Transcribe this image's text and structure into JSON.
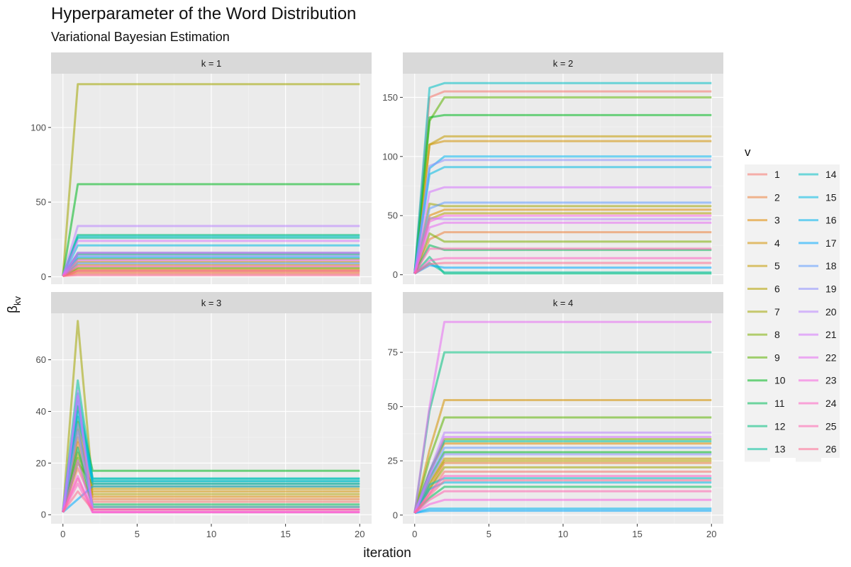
{
  "title": "Hyperparameter of the Word Distribution",
  "subtitle": "Variational Bayesian Estimation",
  "xlabel": "iteration",
  "ylabel_main": "β",
  "ylabel_sub": "kv",
  "legend_title": "v",
  "legend_position": "right",
  "chart_data": {
    "type": "line",
    "facet_prefix": "k = ",
    "x_ticks": [
      0,
      5,
      10,
      15,
      20
    ],
    "xlim": [
      -0.8,
      20.8
    ],
    "grid": true,
    "series_names": [
      "1",
      "2",
      "3",
      "4",
      "5",
      "6",
      "7",
      "8",
      "9",
      "10",
      "11",
      "12",
      "13",
      "14",
      "15",
      "16",
      "17",
      "18",
      "19",
      "20",
      "21",
      "22",
      "23",
      "24",
      "25",
      "26"
    ],
    "series_colors": [
      "#F8766D",
      "#EC823C",
      "#E08B00",
      "#D39200",
      "#C49A00",
      "#B5A300",
      "#A3A500",
      "#7CAE00",
      "#5BB300",
      "#00B81F",
      "#00BC59",
      "#00BF7D",
      "#00C19A",
      "#00BFC4",
      "#00B9E3",
      "#00B4EF",
      "#00A9FF",
      "#619CFF",
      "#8F91FF",
      "#B983FF",
      "#D575FE",
      "#E76BF3",
      "#F763E0",
      "#FF61C3",
      "#FF65AE",
      "#FF6C91"
    ],
    "facets": [
      {
        "k": "1",
        "ylim": [
          -5,
          136
        ],
        "y_ticks": [
          0,
          50,
          100
        ],
        "series": [
          {
            "name": "1",
            "values": [
              0.5,
              2,
              2
            ]
          },
          {
            "name": "2",
            "values": [
              0.5,
              3,
              3
            ]
          },
          {
            "name": "3",
            "values": [
              0.5,
              4,
              4
            ]
          },
          {
            "name": "4",
            "values": [
              0.5,
              5,
              5
            ]
          },
          {
            "name": "5",
            "values": [
              0.5,
              8,
              8
            ]
          },
          {
            "name": "6",
            "values": [
              0.5,
              10,
              10
            ]
          },
          {
            "name": "7",
            "values": [
              0.5,
              129,
              129
            ]
          },
          {
            "name": "8",
            "values": [
              0.5,
              12,
              12
            ]
          },
          {
            "name": "9",
            "values": [
              0.5,
              6,
              6
            ]
          },
          {
            "name": "10",
            "values": [
              0.5,
              62,
              62
            ]
          },
          {
            "name": "11",
            "values": [
              0.5,
              15,
              15
            ]
          },
          {
            "name": "12",
            "values": [
              0.5,
              28,
              28
            ]
          },
          {
            "name": "13",
            "values": [
              0.5,
              26,
              26
            ]
          },
          {
            "name": "14",
            "values": [
              0.5,
              27,
              27
            ]
          },
          {
            "name": "15",
            "values": [
              0.5,
              21,
              21
            ]
          },
          {
            "name": "16",
            "values": [
              0.5,
              13,
              13
            ]
          },
          {
            "name": "17",
            "values": [
              0.5,
              16,
              16
            ]
          },
          {
            "name": "18",
            "values": [
              0.5,
              9,
              9
            ]
          },
          {
            "name": "19",
            "values": [
              0.5,
              14,
              14
            ]
          },
          {
            "name": "20",
            "values": [
              0.5,
              34,
              34
            ]
          },
          {
            "name": "21",
            "values": [
              0.5,
              24,
              24
            ]
          },
          {
            "name": "22",
            "values": [
              0.5,
              11,
              11
            ]
          },
          {
            "name": "23",
            "values": [
              0.5,
              16,
              16
            ]
          },
          {
            "name": "24",
            "values": [
              0.5,
              7,
              7
            ]
          },
          {
            "name": "25",
            "values": [
              0.5,
              4,
              4
            ]
          },
          {
            "name": "26",
            "values": [
              0.5,
              1,
              1
            ]
          }
        ]
      },
      {
        "k": "2",
        "ylim": [
          -8,
          170
        ],
        "y_ticks": [
          0,
          50,
          100,
          150
        ],
        "series": [
          {
            "name": "1",
            "values": [
              1,
              150,
              155,
              155
            ]
          },
          {
            "name": "2",
            "values": [
              1,
              30,
              36,
              36
            ]
          },
          {
            "name": "3",
            "values": [
              1,
              50,
              55,
              55
            ]
          },
          {
            "name": "4",
            "values": [
              1,
              110,
              113,
              113
            ]
          },
          {
            "name": "5",
            "values": [
              1,
              110,
              117,
              117
            ]
          },
          {
            "name": "6",
            "values": [
              1,
              47,
              52,
              52
            ]
          },
          {
            "name": "7",
            "values": [
              1,
              60,
              58,
              58
            ]
          },
          {
            "name": "8",
            "values": [
              1,
              35,
              28,
              28
            ]
          },
          {
            "name": "9",
            "values": [
              1,
              130,
              150,
              150
            ]
          },
          {
            "name": "10",
            "values": [
              1,
              133,
              135,
              135
            ]
          },
          {
            "name": "11",
            "values": [
              1,
              25,
              21,
              21
            ]
          },
          {
            "name": "12",
            "values": [
              1,
              15,
              1,
              1
            ]
          },
          {
            "name": "13",
            "values": [
              1,
              10,
              2,
              2
            ]
          },
          {
            "name": "14",
            "values": [
              1,
              158,
              162,
              162
            ]
          },
          {
            "name": "15",
            "values": [
              1,
              85,
              91,
              91
            ]
          },
          {
            "name": "16",
            "values": [
              1,
              90,
              100,
              100
            ]
          },
          {
            "name": "17",
            "values": [
              1,
              8,
              6,
              6
            ]
          },
          {
            "name": "18",
            "values": [
              1,
              56,
              61,
              61
            ]
          },
          {
            "name": "19",
            "values": [
              1,
              92,
              97,
              97
            ]
          },
          {
            "name": "20",
            "values": [
              1,
              48,
              47,
              47
            ]
          },
          {
            "name": "21",
            "values": [
              1,
              70,
              74,
              74
            ]
          },
          {
            "name": "22",
            "values": [
              1,
              40,
              44,
              44
            ]
          },
          {
            "name": "23",
            "values": [
              1,
              45,
              50,
              50
            ]
          },
          {
            "name": "24",
            "values": [
              1,
              12,
              14,
              14
            ]
          },
          {
            "name": "25",
            "values": [
              1,
              22,
              22,
              22
            ]
          },
          {
            "name": "26",
            "values": [
              1,
              9,
              10,
              10
            ]
          }
        ]
      },
      {
        "k": "3",
        "ylim": [
          -3.5,
          78
        ],
        "y_ticks": [
          0,
          20,
          40,
          60
        ],
        "series": [
          {
            "name": "1",
            "values": [
              1,
              18,
              5,
              5
            ]
          },
          {
            "name": "2",
            "values": [
              1,
              28,
              6,
              6
            ]
          },
          {
            "name": "3",
            "values": [
              1,
              36,
              7,
              7
            ]
          },
          {
            "name": "4",
            "values": [
              1,
              30,
              9,
              9
            ]
          },
          {
            "name": "5",
            "values": [
              1,
              33,
              10,
              10
            ]
          },
          {
            "name": "6",
            "values": [
              1,
              24,
              8,
              8
            ]
          },
          {
            "name": "7",
            "values": [
              1,
              75,
              11,
              11
            ]
          },
          {
            "name": "8",
            "values": [
              1,
              20,
              12,
              12
            ]
          },
          {
            "name": "9",
            "values": [
              1,
              22,
              3,
              3
            ]
          },
          {
            "name": "10",
            "values": [
              1,
              42,
              17,
              17
            ]
          },
          {
            "name": "11",
            "values": [
              1,
              26,
              4,
              4
            ]
          },
          {
            "name": "12",
            "values": [
              1,
              38,
              13,
              13
            ]
          },
          {
            "name": "13",
            "values": [
              1,
              52,
              14,
              14
            ]
          },
          {
            "name": "14",
            "values": [
              1,
              47,
              14,
              14
            ]
          },
          {
            "name": "15",
            "values": [
              1,
              44,
              13,
              13
            ]
          },
          {
            "name": "16",
            "values": [
              1,
              40,
              12,
              12
            ]
          },
          {
            "name": "17",
            "values": [
              1,
              6,
              11,
              11
            ]
          },
          {
            "name": "18",
            "values": [
              1,
              35,
              3,
              3
            ]
          },
          {
            "name": "19",
            "values": [
              1,
              32,
              2,
              2
            ]
          },
          {
            "name": "20",
            "values": [
              1,
              48,
              2,
              2
            ]
          },
          {
            "name": "21",
            "values": [
              1,
              46,
              2,
              2
            ]
          },
          {
            "name": "22",
            "values": [
              1,
              21,
              1,
              1
            ]
          },
          {
            "name": "23",
            "values": [
              1,
              15,
              1,
              1
            ]
          },
          {
            "name": "24",
            "values": [
              1,
              12,
              1,
              1
            ]
          },
          {
            "name": "25",
            "values": [
              1,
              14,
              2,
              2
            ]
          },
          {
            "name": "26",
            "values": [
              1,
              9,
              2,
              2
            ]
          }
        ]
      },
      {
        "k": "4",
        "ylim": [
          -4,
          93
        ],
        "y_ticks": [
          0,
          25,
          50,
          75
        ],
        "series": [
          {
            "name": "1",
            "values": [
              1,
              10,
              20,
              20
            ]
          },
          {
            "name": "2",
            "values": [
              1,
              12,
              24,
              24
            ]
          },
          {
            "name": "3",
            "values": [
              1,
              20,
              33,
              33
            ]
          },
          {
            "name": "4",
            "values": [
              1,
              30,
              53,
              53
            ]
          },
          {
            "name": "5",
            "values": [
              1,
              15,
              26,
              26
            ]
          },
          {
            "name": "6",
            "values": [
              1,
              14,
              25,
              25
            ]
          },
          {
            "name": "7",
            "values": [
              1,
              12,
              22,
              22
            ]
          },
          {
            "name": "8",
            "values": [
              1,
              20,
              35,
              35
            ]
          },
          {
            "name": "9",
            "values": [
              1,
              26,
              45,
              45
            ]
          },
          {
            "name": "10",
            "values": [
              1,
              17,
              29,
              29
            ]
          },
          {
            "name": "11",
            "values": [
              1,
              8,
              13,
              13
            ]
          },
          {
            "name": "12",
            "values": [
              1,
              48,
              75,
              75
            ]
          },
          {
            "name": "13",
            "values": [
              1,
              20,
              34,
              34
            ]
          },
          {
            "name": "14",
            "values": [
              1,
              14,
              17,
              17
            ]
          },
          {
            "name": "15",
            "values": [
              1,
              12,
              15,
              15
            ]
          },
          {
            "name": "16",
            "values": [
              1,
              3,
              3,
              3
            ]
          },
          {
            "name": "17",
            "values": [
              1,
              2,
              2,
              2
            ]
          },
          {
            "name": "18",
            "values": [
              1,
              18,
              31,
              31
            ]
          },
          {
            "name": "19",
            "values": [
              1,
              16,
              28,
              28
            ]
          },
          {
            "name": "20",
            "values": [
              1,
              20,
              38,
              38
            ]
          },
          {
            "name": "21",
            "values": [
              1,
              18,
              36,
              36
            ]
          },
          {
            "name": "22",
            "values": [
              1,
              50,
              89,
              89
            ]
          },
          {
            "name": "23",
            "values": [
              1,
              5,
              7,
              7
            ]
          },
          {
            "name": "24",
            "values": [
              1,
              10,
              18,
              18
            ]
          },
          {
            "name": "25",
            "values": [
              1,
              7,
              11,
              11
            ]
          },
          {
            "name": "26",
            "values": [
              1,
              9,
              16,
              16
            ]
          }
        ]
      }
    ]
  }
}
